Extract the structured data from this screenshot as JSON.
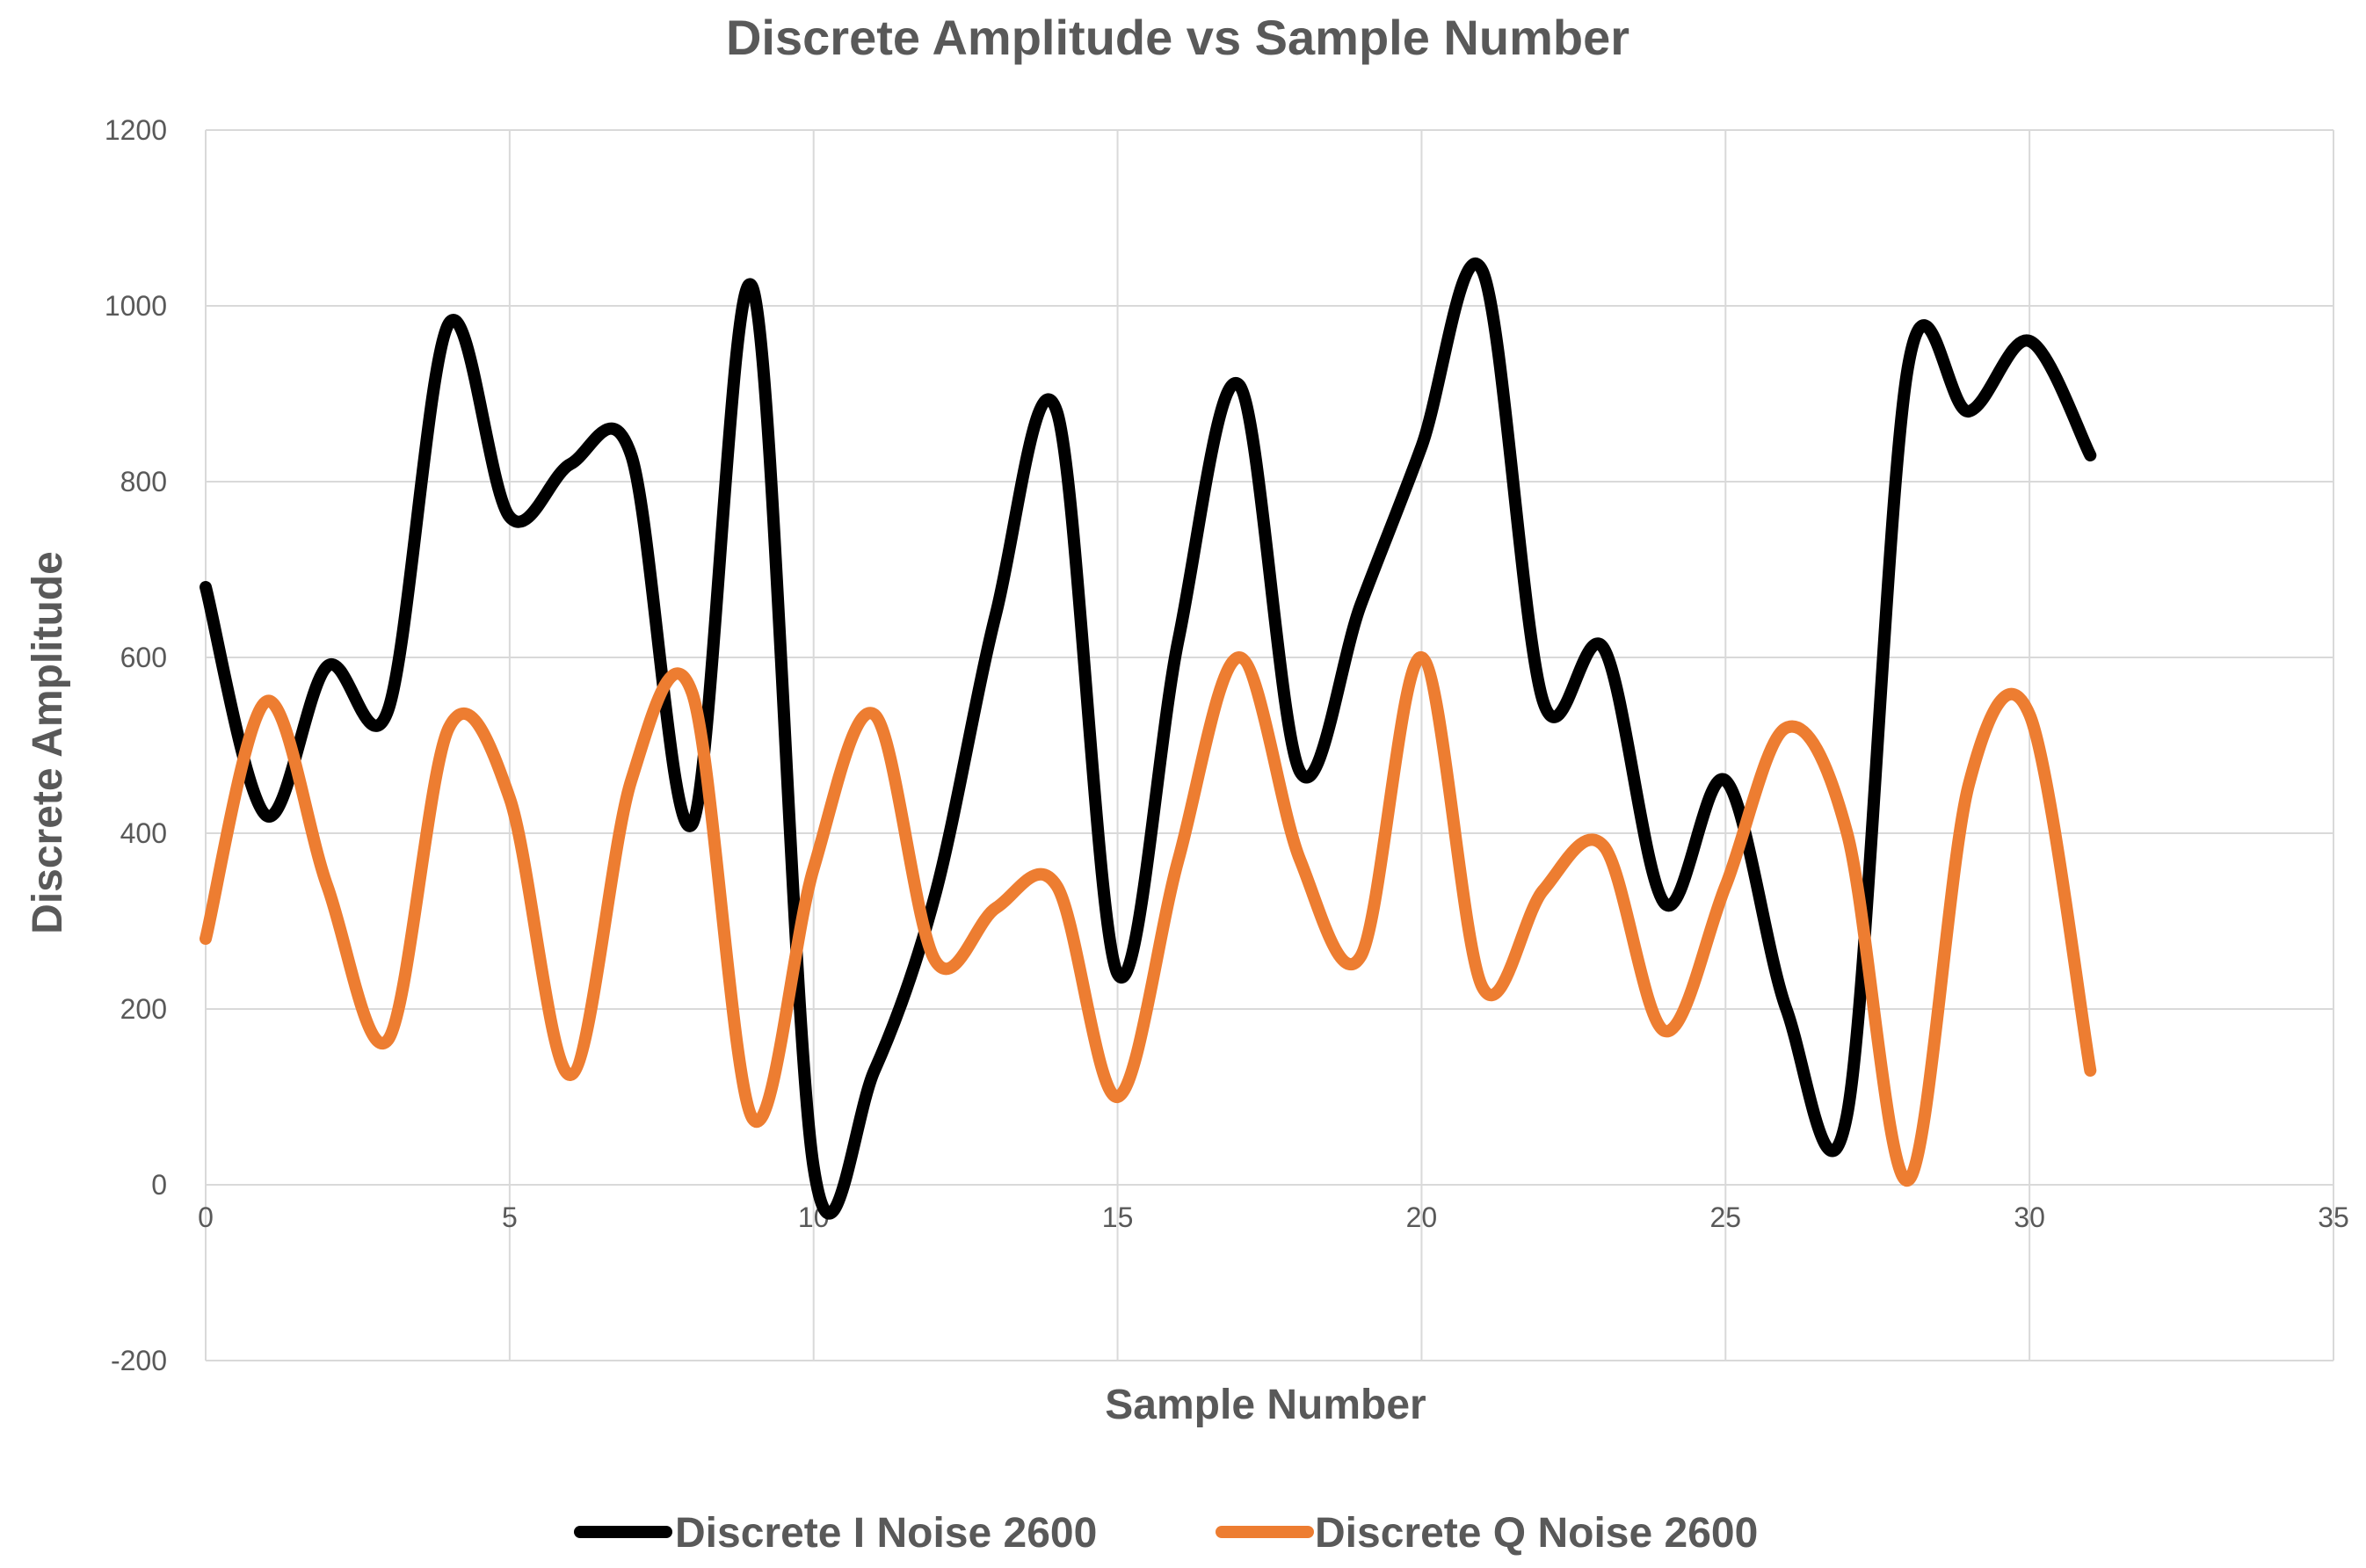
{
  "chart_data": {
    "type": "line",
    "title": "Discrete Amplitude vs Sample Number",
    "xlabel": "Sample Number",
    "ylabel": "Discrete Amplitude",
    "xlim": [
      0,
      35
    ],
    "ylim": [
      -200,
      1200
    ],
    "x_ticks": [
      0,
      5,
      10,
      15,
      20,
      25,
      30,
      35
    ],
    "y_ticks": [
      -200,
      0,
      200,
      400,
      600,
      800,
      1000,
      1200
    ],
    "grid": true,
    "smooth": true,
    "legend_position": "bottom",
    "x": [
      0,
      1,
      2,
      3,
      4,
      5,
      6,
      7,
      8,
      9,
      10,
      11,
      12,
      13,
      14,
      15,
      16,
      17,
      18,
      19,
      20,
      21,
      22,
      23,
      24,
      25,
      26,
      27,
      28,
      29,
      30,
      31
    ],
    "series": [
      {
        "name": "Discrete I Noise 2600",
        "color": "#000000",
        "values": [
          680,
          420,
          590,
          540,
          980,
          760,
          820,
          830,
          410,
          1020,
          20,
          130,
          330,
          650,
          880,
          240,
          620,
          910,
          470,
          660,
          840,
          1040,
          550,
          610,
          320,
          460,
          200,
          80,
          930,
          880,
          960,
          830
        ]
      },
      {
        "name": "Discrete Q Noise 2600",
        "color": "#ed7d31",
        "values": [
          280,
          550,
          340,
          165,
          520,
          440,
          125,
          460,
          560,
          75,
          360,
          535,
          255,
          315,
          340,
          100,
          370,
          600,
          370,
          260,
          600,
          225,
          335,
          385,
          175,
          340,
          520,
          400,
          5,
          455,
          535,
          130
        ]
      }
    ]
  }
}
